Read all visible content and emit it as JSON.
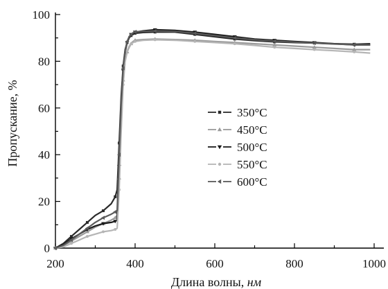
{
  "chart_data": {
    "type": "line",
    "title": "",
    "xlabel": "Длина волны, нм",
    "xlabel_main": "Длина волны, ",
    "xlabel_unit": "нм",
    "ylabel": "Пропускание, %",
    "xlim": [
      200,
      1000
    ],
    "ylim": [
      0,
      100
    ],
    "xticks": [
      200,
      400,
      600,
      800,
      1000
    ],
    "yticks": [
      0,
      20,
      40,
      60,
      80,
      100
    ],
    "grid": false,
    "legend_position": "center-right",
    "x": [
      200,
      220,
      240,
      260,
      280,
      300,
      320,
      340,
      350,
      355,
      360,
      365,
      370,
      375,
      380,
      385,
      390,
      395,
      400,
      420,
      450,
      500,
      550,
      600,
      650,
      700,
      750,
      800,
      850,
      900,
      950,
      990
    ],
    "series": [
      {
        "name": "350°C",
        "marker": "square",
        "color": "#2a2a2a",
        "values": [
          0,
          2,
          5,
          8,
          11,
          14,
          16,
          19,
          22,
          25,
          45,
          65,
          78,
          85,
          88,
          90,
          91,
          91.5,
          92,
          92.3,
          92.5,
          92.5,
          91.5,
          90.5,
          89.5,
          88.8,
          88.3,
          88,
          87.8,
          87.5,
          87.3,
          87.5
        ]
      },
      {
        "name": "450°C",
        "marker": "triangle-up",
        "color": "#9a9a9a",
        "values": [
          0,
          1,
          3,
          5,
          7,
          9,
          10.5,
          12,
          13,
          14,
          30,
          55,
          72,
          80,
          84,
          86,
          87.5,
          88.5,
          89,
          89.3,
          89.5,
          89.3,
          89,
          88.5,
          88,
          87.5,
          87,
          86.5,
          86,
          85.5,
          85,
          85
        ]
      },
      {
        "name": "500°C",
        "marker": "triangle-down",
        "color": "#1a1a1a",
        "values": [
          0,
          1.5,
          4,
          6,
          8,
          9.5,
          10.5,
          11,
          11.5,
          12,
          35,
          60,
          76,
          84,
          88,
          90.5,
          91.5,
          92,
          92.5,
          93,
          93.5,
          93.2,
          92.5,
          91.5,
          90.5,
          89.5,
          89,
          88.5,
          88,
          87.5,
          87,
          87
        ]
      },
      {
        "name": "550°C",
        "marker": "circle",
        "color": "#b5b5b5",
        "values": [
          0,
          0.5,
          2,
          3.5,
          5,
          6,
          7,
          7.5,
          8,
          8.5,
          25,
          50,
          70,
          80,
          84.5,
          86.5,
          87.5,
          88,
          88.5,
          89,
          89.2,
          89,
          88.5,
          88,
          87.5,
          86.8,
          86,
          85.5,
          85,
          84.5,
          84,
          83.5
        ]
      },
      {
        "name": "600°C",
        "marker": "triangle-left",
        "color": "#5a5a5a",
        "values": [
          0,
          1.2,
          3.5,
          6,
          8.5,
          11,
          13,
          14.5,
          15.5,
          16,
          40,
          62,
          77,
          84.5,
          88.5,
          90.5,
          91.5,
          92.2,
          92.6,
          92.8,
          93,
          92.8,
          92,
          91,
          90,
          89.2,
          88.6,
          88.2,
          87.8,
          87.4,
          87.1,
          87
        ]
      }
    ]
  }
}
